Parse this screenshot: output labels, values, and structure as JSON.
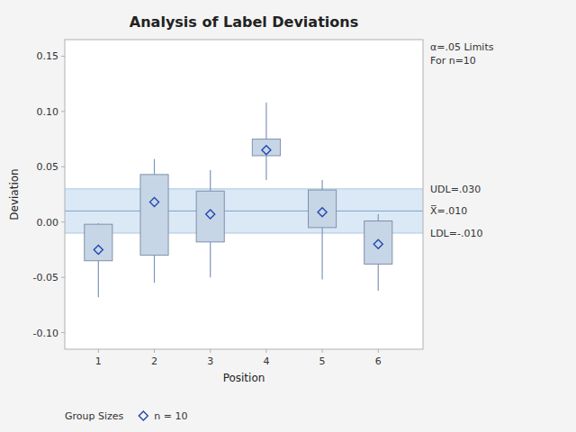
{
  "chart_data": {
    "type": "box",
    "title": "Analysis of Label Deviations",
    "x_label": "Position",
    "y_label": "Deviation",
    "x": [
      1,
      2,
      3,
      4,
      5,
      6
    ],
    "xlim": [
      0.4,
      6.8
    ],
    "xticks": [
      1,
      2,
      3,
      4,
      5,
      6
    ],
    "ylim": [
      -0.115,
      0.165
    ],
    "yticks": [
      {
        "value": -0.1,
        "label": "-0.10"
      },
      -0.05,
      {
        "value": 0.0,
        "label": "0.00"
      },
      0.05,
      {
        "value": 0.1,
        "label": "0.10"
      },
      0.15
    ],
    "grid": false,
    "series": [
      {
        "name": "n = 10",
        "color": "#2248b0",
        "marker": "diamond",
        "values": [
          -0.025,
          0.018,
          0.007,
          0.065,
          0.009,
          -0.02
        ],
        "q1": [
          -0.035,
          -0.03,
          -0.018,
          0.06,
          -0.005,
          -0.038
        ],
        "q3": [
          -0.002,
          0.043,
          0.028,
          0.075,
          0.029,
          0.001
        ],
        "whisker_low": [
          -0.068,
          -0.055,
          -0.05,
          0.038,
          -0.052,
          -0.062
        ],
        "whisker_high": [
          -0.001,
          0.057,
          0.047,
          0.108,
          0.038,
          0.007
        ]
      }
    ],
    "reference_lines": [
      {
        "value": 0.03,
        "label": "UDL=.030"
      },
      {
        "value": 0.01,
        "label": "X̅=.010"
      },
      {
        "value": -0.01,
        "label": "LDL=-.010"
      }
    ],
    "annotations": [
      "α=.05 Limits\nFor n=10"
    ],
    "legend_title": "Group Sizes"
  }
}
